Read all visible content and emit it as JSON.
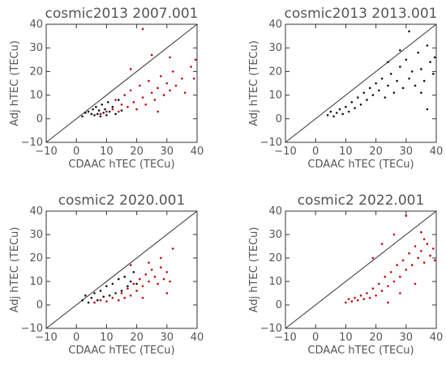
{
  "colors": {
    "ref_only": "#111111",
    "adjusted": "#cc0000",
    "text": "#555555",
    "axis": "#333333"
  },
  "chart_data": [
    {
      "type": "scatter",
      "title": "cosmic2013 2007.001",
      "xlabel": "CDAAC hTEC (TECu)",
      "ylabel": "Adj hTEC (TECu)",
      "xlim": [
        -10,
        40
      ],
      "ylim": [
        -10,
        40
      ],
      "xticks": [
        "−10",
        "0",
        "10",
        "20",
        "30",
        "40"
      ],
      "yticks": [
        "−10",
        "0",
        "10",
        "20",
        "30",
        "40"
      ],
      "reference_line": "y = x",
      "series": [
        {
          "color": "#111111",
          "points": [
            [
              2.0,
              1.0
            ],
            [
              3.0,
              2.5
            ],
            [
              4.0,
              3.0
            ],
            [
              5.0,
              2.0
            ],
            [
              5.5,
              4.0
            ],
            [
              6.0,
              1.5
            ],
            [
              6.5,
              5.0
            ],
            [
              7.0,
              2.0
            ],
            [
              7.5,
              3.5
            ],
            [
              8.0,
              1.0
            ],
            [
              8.5,
              6.0
            ],
            [
              9.0,
              2.5
            ],
            [
              9.5,
              4.0
            ],
            [
              10.0,
              1.5
            ],
            [
              10.5,
              7.0
            ],
            [
              11.0,
              3.0
            ],
            [
              12.0,
              5.0
            ],
            [
              13.0,
              2.0
            ],
            [
              14.0,
              8.0
            ],
            [
              15.0,
              3.5
            ]
          ]
        },
        {
          "color": "#cc0000",
          "points": [
            [
              8.0,
              2.0
            ],
            [
              10.0,
              3.0
            ],
            [
              12.0,
              4.0
            ],
            [
              13.0,
              8.0
            ],
            [
              14.0,
              3.0
            ],
            [
              15.0,
              6.0
            ],
            [
              16.0,
              10.0
            ],
            [
              17.0,
              5.0
            ],
            [
              18.0,
              12.0
            ],
            [
              19.0,
              7.0
            ],
            [
              20.0,
              4.0
            ],
            [
              21.0,
              14.0
            ],
            [
              22.0,
              9.0
            ],
            [
              23.0,
              6.0
            ],
            [
              24.0,
              16.0
            ],
            [
              25.0,
              11.0
            ],
            [
              26.0,
              8.0
            ],
            [
              27.0,
              13.0
            ],
            [
              28.0,
              18.0
            ],
            [
              29.0,
              10.0
            ],
            [
              30.0,
              15.0
            ],
            [
              31.0,
              12.0
            ],
            [
              32.0,
              20.0
            ],
            [
              33.0,
              14.0
            ],
            [
              35.0,
              17.0
            ],
            [
              36.0,
              11.0
            ],
            [
              38.0,
              22.0
            ],
            [
              39.0,
              17.0
            ],
            [
              39.5,
              25.0
            ],
            [
              22.0,
              38.0
            ],
            [
              25.0,
              27.0
            ],
            [
              18.0,
              21.0
            ],
            [
              31.0,
              26.0
            ],
            [
              27.0,
              3.0
            ]
          ]
        }
      ]
    },
    {
      "type": "scatter",
      "title": "cosmic2013 2013.001",
      "xlabel": "CDAAC hTEC (TECu)",
      "ylabel": "Adj hTEC (TECu)",
      "xlim": [
        -10,
        40
      ],
      "ylim": [
        -10,
        40
      ],
      "xticks": [
        "−10",
        "0",
        "10",
        "20",
        "30",
        "40"
      ],
      "yticks": [
        "−10",
        "0",
        "10",
        "20",
        "30",
        "40"
      ],
      "reference_line": "y = x",
      "series": [
        {
          "color": "#111111",
          "points": [
            [
              4.0,
              1.5
            ],
            [
              5.0,
              3.0
            ],
            [
              6.0,
              1.0
            ],
            [
              7.0,
              2.5
            ],
            [
              8.0,
              4.0
            ],
            [
              9.0,
              2.0
            ],
            [
              10.0,
              5.0
            ],
            [
              11.0,
              3.0
            ],
            [
              12.0,
              7.0
            ],
            [
              13.0,
              4.5
            ],
            [
              14.0,
              9.0
            ],
            [
              15.0,
              6.0
            ],
            [
              16.0,
              11.0
            ],
            [
              17.0,
              8.0
            ],
            [
              18.0,
              13.0
            ],
            [
              19.0,
              10.0
            ],
            [
              20.0,
              15.0
            ],
            [
              21.0,
              12.0
            ],
            [
              22.0,
              17.0
            ],
            [
              23.0,
              9.0
            ],
            [
              24.0,
              14.0
            ],
            [
              25.0,
              19.0
            ],
            [
              26.0,
              11.0
            ],
            [
              27.0,
              16.0
            ],
            [
              28.0,
              22.0
            ],
            [
              29.0,
              13.0
            ],
            [
              30.0,
              25.0
            ],
            [
              31.0,
              17.0
            ],
            [
              32.0,
              20.0
            ],
            [
              33.0,
              14.0
            ],
            [
              34.0,
              28.0
            ],
            [
              35.0,
              21.0
            ],
            [
              36.0,
              16.0
            ],
            [
              37.0,
              31.0
            ],
            [
              38.0,
              24.0
            ],
            [
              39.0,
              19.0
            ],
            [
              39.5,
              26.0
            ],
            [
              31.0,
              37.0
            ],
            [
              28.0,
              29.0
            ],
            [
              24.0,
              24.0
            ],
            [
              35.0,
              11.0
            ],
            [
              37.0,
              4.0
            ]
          ]
        }
      ]
    },
    {
      "type": "scatter",
      "title": "cosmic2 2020.001",
      "xlabel": "CDAAC hTEC (TECu)",
      "ylabel": "Adj hTEC (TECu)",
      "xlim": [
        -10,
        40
      ],
      "ylim": [
        -10,
        40
      ],
      "xticks": [
        "−10",
        "0",
        "10",
        "20",
        "30",
        "40"
      ],
      "yticks": [
        "−10",
        "0",
        "10",
        "20",
        "30",
        "40"
      ],
      "reference_line": "y = x",
      "series": [
        {
          "color": "#111111",
          "points": [
            [
              2.0,
              2.0
            ],
            [
              3.0,
              4.0
            ],
            [
              4.0,
              1.0
            ],
            [
              5.0,
              3.0
            ],
            [
              6.0,
              5.0
            ],
            [
              7.0,
              2.0
            ],
            [
              8.0,
              6.0
            ],
            [
              9.0,
              3.5
            ],
            [
              10.0,
              8.0
            ],
            [
              11.0,
              4.0
            ],
            [
              12.0,
              9.0
            ],
            [
              13.0,
              5.0
            ],
            [
              14.0,
              11.0
            ],
            [
              15.0,
              6.0
            ],
            [
              16.0,
              12.0
            ],
            [
              17.0,
              8.0
            ],
            [
              18.0,
              10.0
            ],
            [
              19.0,
              14.0
            ],
            [
              20.0,
              9.0
            ]
          ]
        },
        {
          "color": "#cc0000",
          "points": [
            [
              6.0,
              1.0
            ],
            [
              8.0,
              2.0
            ],
            [
              10.0,
              1.5
            ],
            [
              12.0,
              3.0
            ],
            [
              14.0,
              2.0
            ],
            [
              15.0,
              5.0
            ],
            [
              16.0,
              3.0
            ],
            [
              17.0,
              7.0
            ],
            [
              18.0,
              4.0
            ],
            [
              19.0,
              9.0
            ],
            [
              20.0,
              6.0
            ],
            [
              21.0,
              11.0
            ],
            [
              22.0,
              8.0
            ],
            [
              23.0,
              13.0
            ],
            [
              24.0,
              10.0
            ],
            [
              25.0,
              15.0
            ],
            [
              26.0,
              12.0
            ],
            [
              27.0,
              9.0
            ],
            [
              28.0,
              16.0
            ],
            [
              29.0,
              11.0
            ],
            [
              30.0,
              14.0
            ],
            [
              31.0,
              10.0
            ],
            [
              32.0,
              24.0
            ],
            [
              28.0,
              20.0
            ],
            [
              24.0,
              18.0
            ],
            [
              30.0,
              5.0
            ],
            [
              18.0,
              17.0
            ],
            [
              22.0,
              3.0
            ]
          ]
        }
      ]
    },
    {
      "type": "scatter",
      "title": "cosmic2 2022.001",
      "xlabel": "CDAAC hTEC (TECu)",
      "ylabel": "Adj hTEC (TECu)",
      "xlim": [
        -10,
        40
      ],
      "ylim": [
        -10,
        40
      ],
      "xticks": [
        "−10",
        "0",
        "10",
        "20",
        "30",
        "40"
      ],
      "yticks": [
        "−10",
        "0",
        "10",
        "20",
        "30",
        "40"
      ],
      "reference_line": "y = x",
      "series": [
        {
          "color": "#cc0000",
          "points": [
            [
              10.0,
              1.0
            ],
            [
              11.0,
              2.5
            ],
            [
              12.0,
              1.5
            ],
            [
              13.0,
              3.0
            ],
            [
              14.0,
              2.0
            ],
            [
              15.0,
              4.0
            ],
            [
              16.0,
              2.5
            ],
            [
              17.0,
              5.0
            ],
            [
              18.0,
              3.0
            ],
            [
              19.0,
              7.0
            ],
            [
              20.0,
              4.0
            ],
            [
              21.0,
              9.0
            ],
            [
              22.0,
              6.0
            ],
            [
              23.0,
              12.0
            ],
            [
              24.0,
              8.0
            ],
            [
              25.0,
              14.0
            ],
            [
              26.0,
              10.0
            ],
            [
              27.0,
              17.0
            ],
            [
              28.0,
              12.0
            ],
            [
              29.0,
              19.0
            ],
            [
              30.0,
              15.0
            ],
            [
              31.0,
              22.0
            ],
            [
              32.0,
              17.0
            ],
            [
              33.0,
              25.0
            ],
            [
              34.0,
              20.0
            ],
            [
              35.0,
              23.0
            ],
            [
              36.0,
              18.0
            ],
            [
              37.0,
              26.0
            ],
            [
              38.0,
              21.0
            ],
            [
              39.0,
              24.0
            ],
            [
              39.5,
              19.0
            ],
            [
              30.0,
              38.0
            ],
            [
              26.0,
              30.0
            ],
            [
              35.0,
              31.0
            ],
            [
              33.0,
              9.0
            ],
            [
              24.0,
              1.0
            ],
            [
              19.0,
              20.0
            ],
            [
              22.0,
              26.0
            ],
            [
              28.0,
              5.0
            ],
            [
              36.0,
              28.0
            ]
          ]
        }
      ]
    }
  ]
}
